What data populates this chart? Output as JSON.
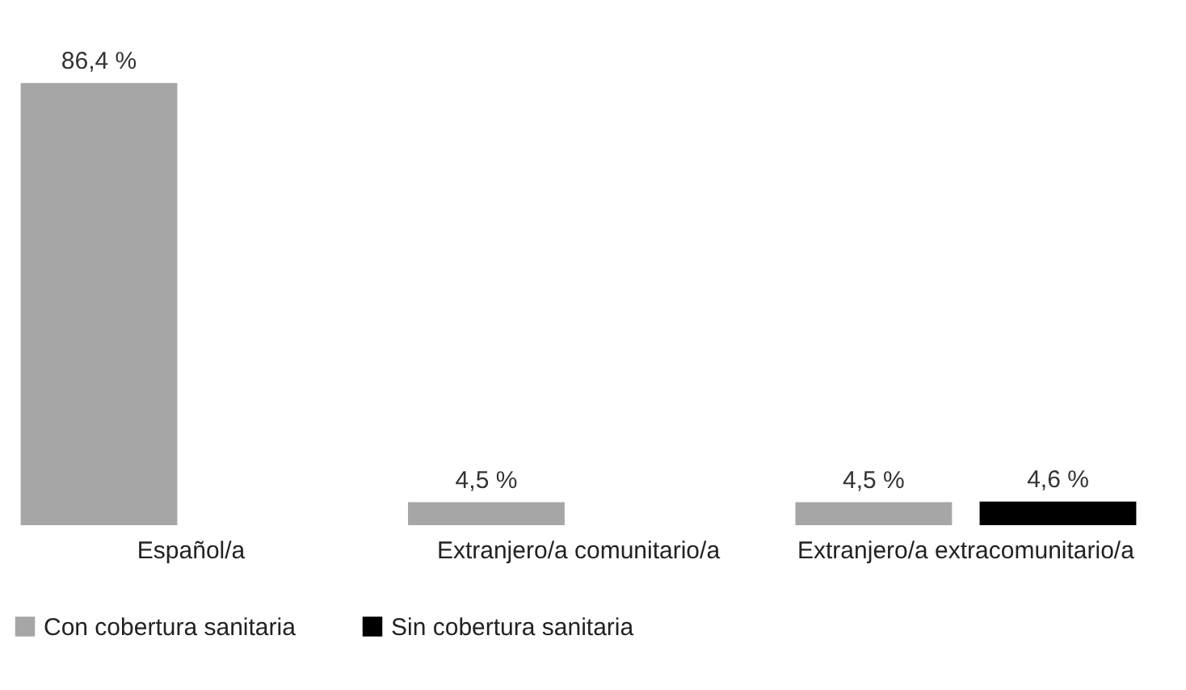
{
  "chart_data": {
    "type": "bar",
    "categories": [
      "Español/a",
      "Extranjero/a comunitario/a",
      "Extranjero/a extracomunitario/a"
    ],
    "series": [
      {
        "name": "Con cobertura sanitaria",
        "color": "#a6a6a6",
        "values": [
          86.4,
          4.5,
          4.5
        ],
        "value_labels": [
          "86,4 %",
          "4,5 %",
          "4,5 %"
        ]
      },
      {
        "name": "Sin cobertura sanitaria",
        "color": "#000000",
        "values": [
          null,
          null,
          4.6
        ],
        "value_labels": [
          null,
          null,
          "4,6 %"
        ]
      }
    ],
    "legend": "bottom left",
    "grid": false
  }
}
